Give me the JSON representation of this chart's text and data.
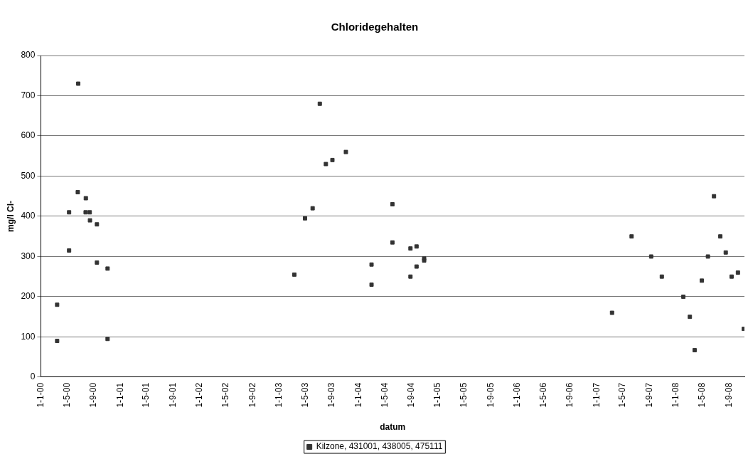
{
  "chart_data": {
    "type": "scatter",
    "title": "Chloridegehalten",
    "xlabel": "datum",
    "ylabel": "mg/l Cl-",
    "xlim": [
      "2000-01-01",
      "2008-11-10"
    ],
    "xticks": [
      {
        "value": "2000-01-01",
        "label": "1-1-00"
      },
      {
        "value": "2000-05-01",
        "label": "1-5-00"
      },
      {
        "value": "2000-09-01",
        "label": "1-9-00"
      },
      {
        "value": "2001-01-01",
        "label": "1-1-01"
      },
      {
        "value": "2001-05-01",
        "label": "1-5-01"
      },
      {
        "value": "2001-09-01",
        "label": "1-9-01"
      },
      {
        "value": "2002-01-01",
        "label": "1-1-02"
      },
      {
        "value": "2002-05-01",
        "label": "1-5-02"
      },
      {
        "value": "2002-09-01",
        "label": "1-9-02"
      },
      {
        "value": "2003-01-01",
        "label": "1-1-03"
      },
      {
        "value": "2003-05-01",
        "label": "1-5-03"
      },
      {
        "value": "2003-09-01",
        "label": "1-9-03"
      },
      {
        "value": "2004-01-01",
        "label": "1-1-04"
      },
      {
        "value": "2004-05-01",
        "label": "1-5-04"
      },
      {
        "value": "2004-09-01",
        "label": "1-9-04"
      },
      {
        "value": "2005-01-01",
        "label": "1-1-05"
      },
      {
        "value": "2005-05-01",
        "label": "1-5-05"
      },
      {
        "value": "2005-09-01",
        "label": "1-9-05"
      },
      {
        "value": "2006-01-01",
        "label": "1-1-06"
      },
      {
        "value": "2006-05-01",
        "label": "1-5-06"
      },
      {
        "value": "2006-09-01",
        "label": "1-9-06"
      },
      {
        "value": "2007-01-01",
        "label": "1-1-07"
      },
      {
        "value": "2007-05-01",
        "label": "1-5-07"
      },
      {
        "value": "2007-09-01",
        "label": "1-9-07"
      },
      {
        "value": "2008-01-01",
        "label": "1-1-08"
      },
      {
        "value": "2008-05-01",
        "label": "1-5-08"
      },
      {
        "value": "2008-09-01",
        "label": "1-9-08"
      }
    ],
    "ylim": [
      0,
      800
    ],
    "yticks": [
      0,
      100,
      200,
      300,
      400,
      500,
      600,
      700,
      800
    ],
    "grid": "y",
    "legend": "bottom",
    "marker": "square",
    "series": [
      {
        "name": "Kilzone, 431001, 438005, 475111",
        "color": "#333333",
        "x": [
          "2000-03-16",
          "2000-03-16",
          "2000-05-10",
          "2000-05-10",
          "2000-06-21",
          "2000-06-19",
          "2000-07-26",
          "2000-07-25",
          "2000-08-13",
          "2000-08-14",
          "2000-09-15",
          "2000-09-15",
          "2000-11-03",
          "2000-11-03",
          "2003-03-12",
          "2003-04-30",
          "2003-06-04",
          "2003-07-07",
          "2003-08-04",
          "2003-09-03",
          "2003-11-04",
          "2004-03-01",
          "2004-03-01",
          "2004-06-05",
          "2004-06-05",
          "2004-08-27",
          "2004-08-27",
          "2004-09-24",
          "2004-09-24",
          "2004-10-29",
          "2004-10-29",
          "2007-03-12",
          "2007-06-10",
          "2007-09-08",
          "2007-10-27",
          "2008-02-03",
          "2008-03-04",
          "2008-03-26",
          "2008-04-28",
          "2008-05-26",
          "2008-06-23",
          "2008-07-22",
          "2008-08-16",
          "2008-09-12",
          "2008-10-11",
          "2008-11-07"
        ],
        "values": [
          180,
          90,
          410,
          315,
          730,
          460,
          445,
          410,
          410,
          390,
          380,
          285,
          270,
          95,
          255,
          395,
          420,
          680,
          530,
          540,
          560,
          280,
          230,
          430,
          335,
          250,
          320,
          275,
          325,
          295,
          290,
          160,
          350,
          300,
          250,
          200,
          150,
          67,
          240,
          300,
          450,
          350,
          310,
          250,
          260,
          120
        ]
      }
    ]
  }
}
